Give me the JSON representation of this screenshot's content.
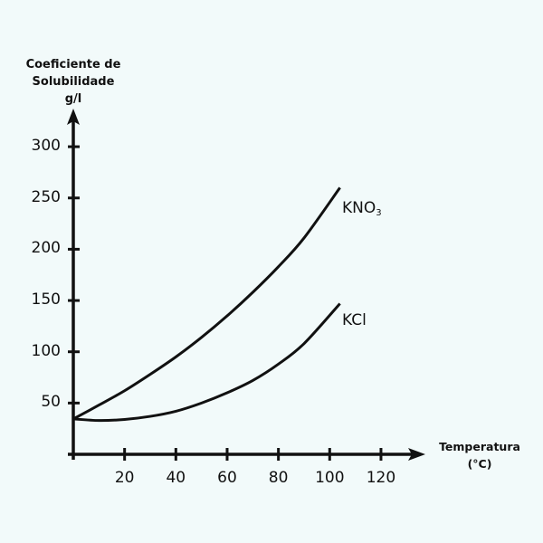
{
  "chart_data": {
    "type": "line",
    "title": "",
    "ylabel": [
      "Coeficiente de",
      "Solubilidade",
      "g/l"
    ],
    "xlabel": [
      "Temperatura",
      "(°C)"
    ],
    "xlim": [
      0,
      135
    ],
    "ylim": [
      0,
      320
    ],
    "x_ticks": [
      20,
      40,
      60,
      80,
      100,
      120
    ],
    "y_ticks": [
      50,
      100,
      150,
      200,
      250,
      300
    ],
    "grid": false,
    "legend": "inline labels at curve ends",
    "series": [
      {
        "name": "KNO3",
        "label_main": "KNO",
        "label_sub": "3",
        "x": [
          0,
          10,
          20,
          30,
          40,
          50,
          60,
          70,
          80,
          90,
          104
        ],
        "values": [
          34.5,
          48,
          62,
          78,
          95,
          114,
          135,
          158,
          183,
          211,
          260
        ]
      },
      {
        "name": "KCl",
        "label_main": "KCl",
        "label_sub": "",
        "x": [
          0,
          10,
          20,
          30,
          40,
          50,
          60,
          70,
          80,
          90,
          104
        ],
        "values": [
          34.5,
          33,
          34,
          37,
          42,
          50,
          60,
          72,
          88,
          108,
          147
        ]
      }
    ]
  },
  "colors": {
    "background": "#f2fafa",
    "ink": "#111111"
  }
}
